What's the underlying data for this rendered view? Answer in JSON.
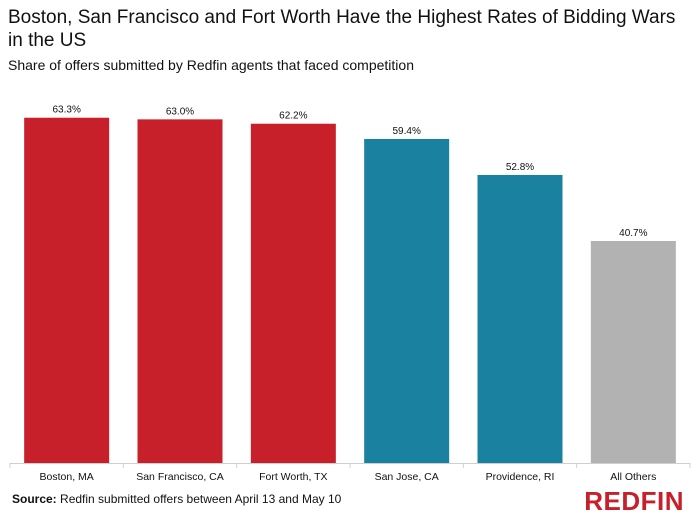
{
  "header": {
    "title": "Boston, San Francisco and Fort Worth Have the Highest Rates of Bidding Wars in the US",
    "subtitle": "Share of offers submitted by Redfin agents that faced competition"
  },
  "footer": {
    "source_label": "Source:",
    "source_text": "Redfin submitted offers between April 13 and May 10",
    "brand": "REDFIN"
  },
  "colors": {
    "red": "#c8202a",
    "teal": "#1a82a0",
    "gray": "#b2b2b2",
    "brand": "#c8202a"
  },
  "chart_data": {
    "type": "bar",
    "categories": [
      "Boston, MA",
      "San Francisco, CA",
      "Fort Worth, TX",
      "San Jose, CA",
      "Providence, RI",
      "All Others"
    ],
    "values": [
      63.3,
      63.0,
      62.2,
      59.4,
      52.8,
      40.7
    ],
    "value_labels": [
      "63.3%",
      "63.0%",
      "62.2%",
      "59.4%",
      "52.8%",
      "40.7%"
    ],
    "bar_colors": [
      "#c8202a",
      "#c8202a",
      "#c8202a",
      "#1a82a0",
      "#1a82a0",
      "#b2b2b2"
    ],
    "title": "Boston, San Francisco and Fort Worth Have the Highest Rates of Bidding Wars in the US",
    "ylim": [
      0,
      66
    ],
    "grid": false,
    "legend": "none"
  }
}
